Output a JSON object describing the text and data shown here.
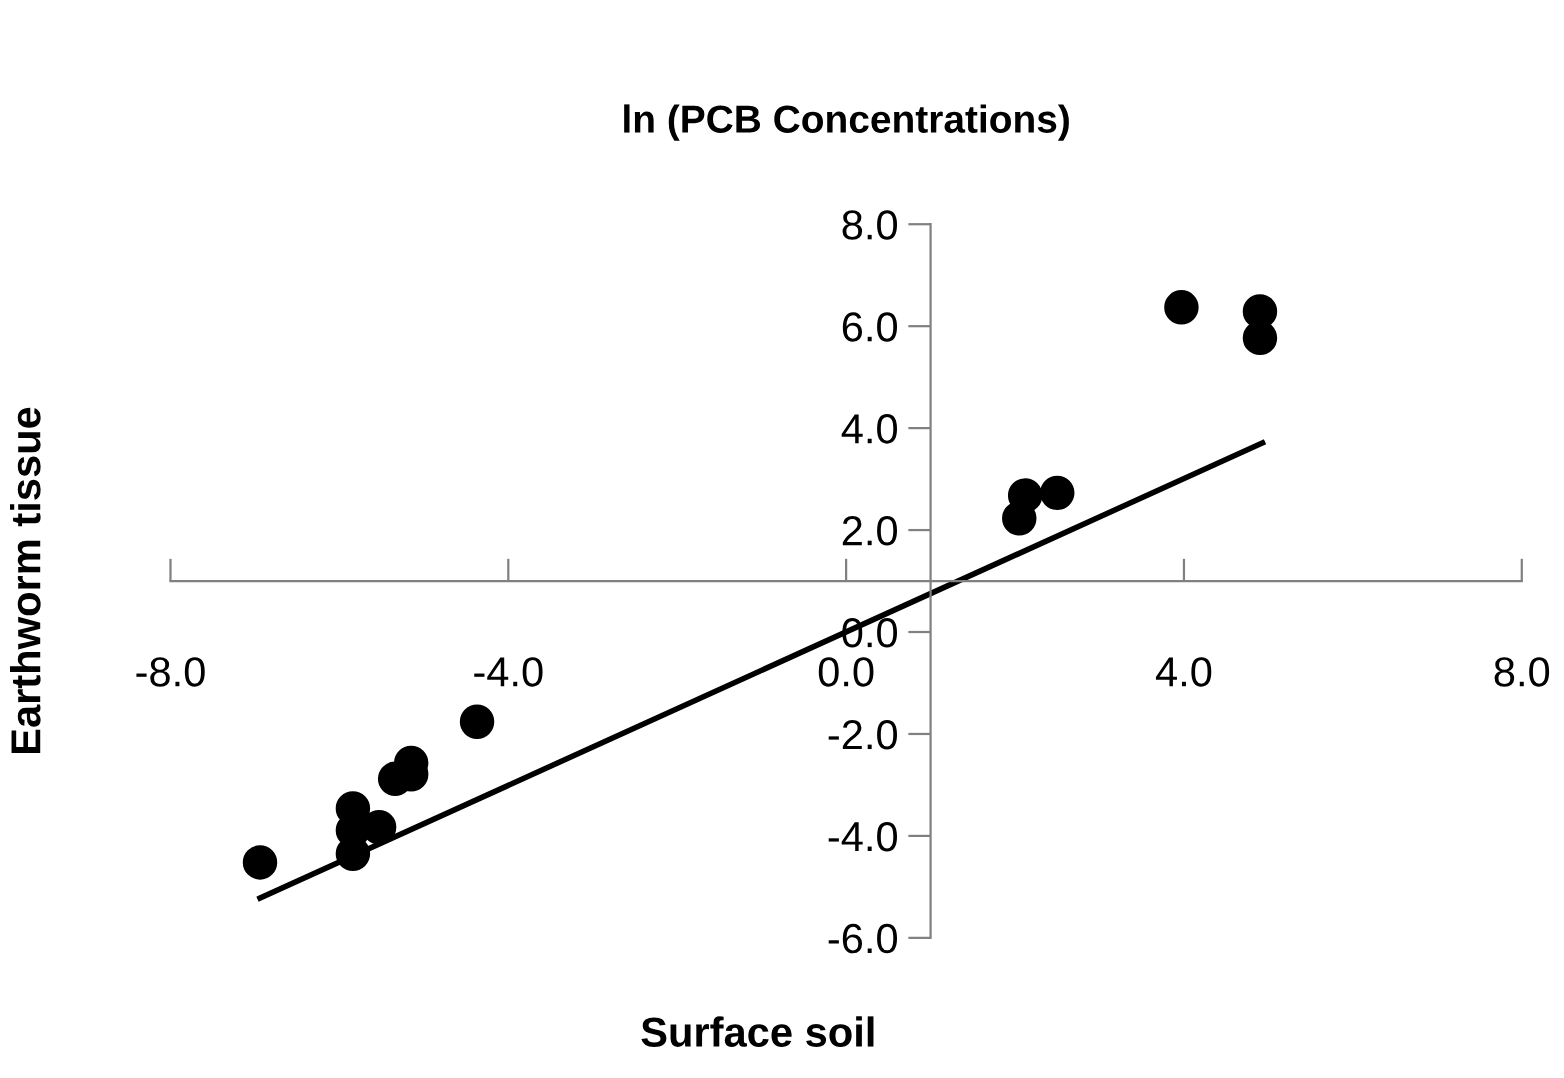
{
  "chart_data": {
    "type": "scatter",
    "title": "ln (PCB Concentrations)",
    "xlabel": "Surface soil",
    "ylabel": "Earthworm tissue",
    "xlim": [
      -8,
      8
    ],
    "ylim": [
      -6,
      8
    ],
    "xticks": [
      {
        "value": -8,
        "label": "-8.0"
      },
      {
        "value": -4,
        "label": "-4.0"
      },
      {
        "value": 0,
        "label": "0.0"
      },
      {
        "value": 4,
        "label": "4.0"
      },
      {
        "value": 8,
        "label": "8.0"
      }
    ],
    "yticks": [
      {
        "value": -6,
        "label": "-6.0"
      },
      {
        "value": -4,
        "label": "-4.0"
      },
      {
        "value": -2,
        "label": "-2.0"
      },
      {
        "value": 0,
        "label": "0.0"
      },
      {
        "value": 2,
        "label": "2.0"
      },
      {
        "value": 4,
        "label": "4.0"
      },
      {
        "value": 6,
        "label": "6.0"
      },
      {
        "value": 8,
        "label": "8.0"
      }
    ],
    "grid": false,
    "legend": false,
    "marker": "circle",
    "series": [
      {
        "color": "#000000",
        "x": [
          -6.94,
          -5.84,
          -5.84,
          -5.84,
          -5.53,
          -5.34,
          -5.15,
          -5.15,
          -4.37,
          2.05,
          2.12,
          2.5,
          3.97,
          4.9,
          4.9
        ],
        "values": [
          -4.52,
          -3.46,
          -3.89,
          -4.35,
          -3.83,
          -2.88,
          -2.57,
          -2.79,
          -1.76,
          2.23,
          2.68,
          2.73,
          6.37,
          6.29,
          5.77
        ]
      },
      {
        "type": "line",
        "color": "#000000",
        "marker": "none",
        "line_style": "solid",
        "x": [
          -6.94,
          4.93
        ],
        "values": [
          -5.22,
          3.71
        ]
      }
    ]
  }
}
